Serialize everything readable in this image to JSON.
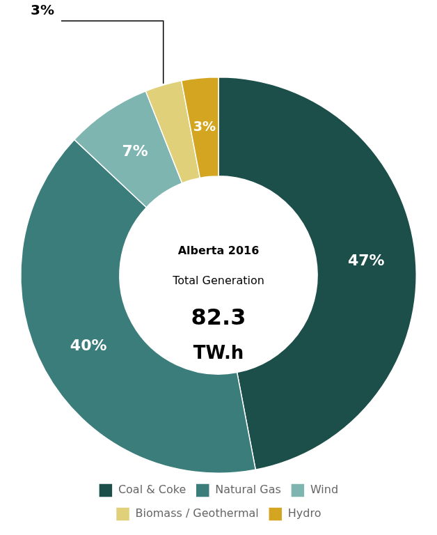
{
  "chart_data": {
    "type": "doughnut",
    "categories": [
      "Coal & Coke",
      "Natural Gas",
      "Wind",
      "Biomass / Geothermal",
      "Hydro"
    ],
    "values": [
      47,
      40,
      7,
      3,
      3
    ],
    "value_labels": [
      "47%",
      "40%",
      "7%",
      "3%",
      "3%"
    ],
    "colors": [
      "#1d4f4a",
      "#3a7d7b",
      "#7fb5b0",
      "#e0d07a",
      "#d4a520"
    ],
    "data_labels": true,
    "legend": "bottom",
    "annotations": [
      "Alberta 2016",
      "Total Generation",
      "82.3",
      "TW.h"
    ]
  }
}
